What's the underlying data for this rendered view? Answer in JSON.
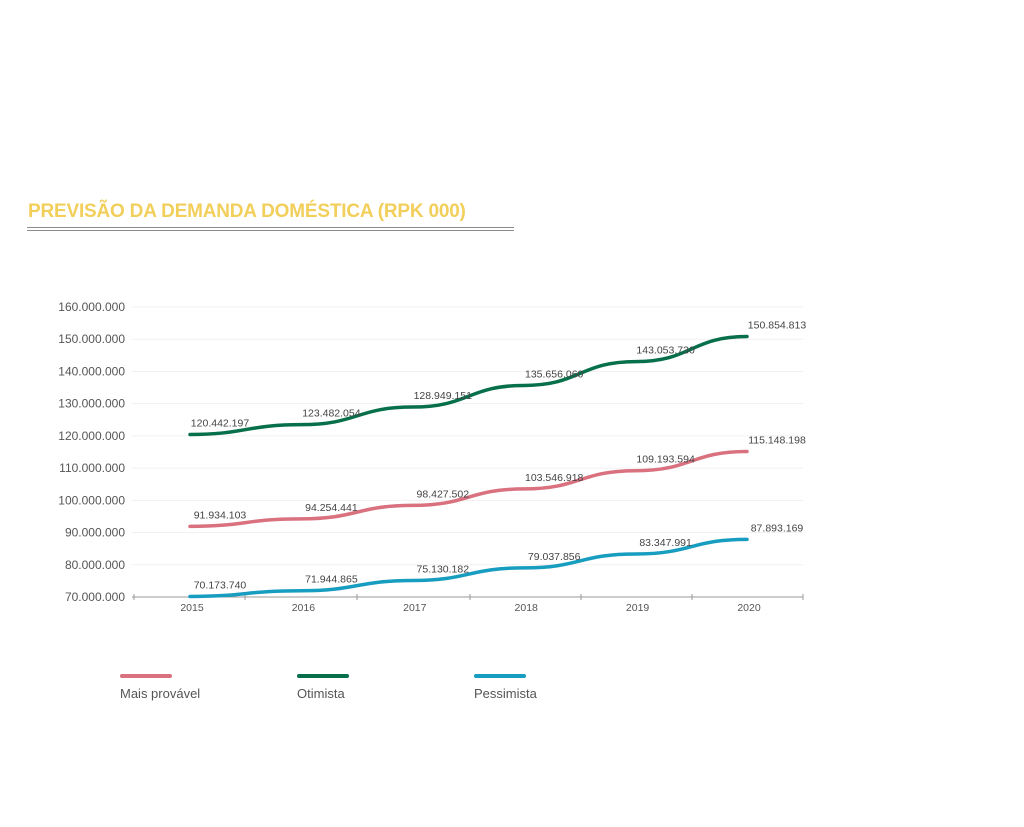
{
  "chart_data": {
    "type": "line",
    "title": "PREVISÃO DA DEMANDA DOMÉSTICA (RPK 000)",
    "xlabel": "",
    "ylabel": "",
    "x": [
      "2015",
      "2016",
      "2017",
      "2018",
      "2019",
      "2020"
    ],
    "y_ticks": [
      "160.000.000",
      "150.000.000",
      "140.000.000",
      "130.000.000",
      "120.000.000",
      "110.000.000",
      "100.000.000",
      "90.000.000",
      "80.000.000",
      "70.000.000"
    ],
    "ylim": [
      70000000,
      160000000
    ],
    "grid": true,
    "legend_position": "bottom",
    "series": [
      {
        "name": "Mais provável",
        "color": "#d9717f",
        "values": [
          91934103,
          94254441,
          98427502,
          103546918,
          109193594,
          115148198
        ],
        "labels": [
          "91.934.103",
          "94.254.441",
          "98.427.502",
          "103.546.918",
          "109.193.594",
          "115.148.198"
        ]
      },
      {
        "name": "Otimista",
        "color": "#07704a",
        "values": [
          120442197,
          123482054,
          128949151,
          135656060,
          143053730,
          150854813
        ],
        "labels": [
          "120.442.197",
          "123.482.054",
          "128.949.151",
          "135.656.060",
          "143.053.730",
          "150.854.813"
        ]
      },
      {
        "name": "Pessimista",
        "color": "#179dbf",
        "values": [
          70173740,
          71944865,
          75130182,
          79037856,
          83347991,
          87893169
        ],
        "labels": [
          "70.173.740",
          "71.944.865",
          "75.130.182",
          "79.037.856",
          "83.347.991",
          "87.893.169"
        ]
      }
    ]
  }
}
